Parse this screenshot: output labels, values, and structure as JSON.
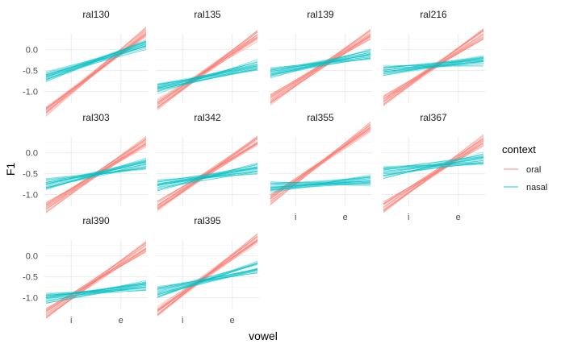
{
  "colors": {
    "oral": "#F8766D",
    "nasal": "#00BFC4"
  },
  "chart_data": {
    "type": "line",
    "title": "",
    "xlabel": "vowel",
    "ylabel": "F1",
    "x_categories": [
      "i",
      "e"
    ],
    "y_ticks": [
      0.0,
      -0.5,
      -1.0
    ],
    "y_tick_labels": [
      "0.0",
      "-0.5",
      "-1.0"
    ],
    "ylim": [
      -1.28,
      0.38
    ],
    "grid": true,
    "legend": {
      "title": "context",
      "position": "right",
      "entries": [
        {
          "key": "oral",
          "label": "oral"
        },
        {
          "key": "nasal",
          "label": "nasal"
        }
      ]
    },
    "samples_per_series": 40,
    "facets": [
      {
        "label": "ral130",
        "series": [
          {
            "name": "oral",
            "i": -1.0,
            "e": -0.05,
            "spread": 0.08
          },
          {
            "name": "nasal",
            "i": -0.45,
            "e": -0.08,
            "spread": 0.08
          }
        ]
      },
      {
        "label": "ral135",
        "series": [
          {
            "name": "oral",
            "i": -0.9,
            "e": -0.08,
            "spread": 0.08
          },
          {
            "name": "nasal",
            "i": -0.78,
            "e": -0.52,
            "spread": 0.08
          }
        ]
      },
      {
        "label": "ral139",
        "series": [
          {
            "name": "oral",
            "i": -0.8,
            "e": -0.02,
            "spread": 0.08
          },
          {
            "name": "nasal",
            "i": -0.45,
            "e": -0.22,
            "spread": 0.08
          }
        ]
      },
      {
        "label": "ral216",
        "series": [
          {
            "name": "oral",
            "i": -0.82,
            "e": -0.02,
            "spread": 0.08
          },
          {
            "name": "nasal",
            "i": -0.45,
            "e": -0.32,
            "spread": 0.08
          }
        ]
      },
      {
        "label": "ral303",
        "series": [
          {
            "name": "oral",
            "i": -0.92,
            "e": -0.12,
            "spread": 0.08
          },
          {
            "name": "nasal",
            "i": -0.62,
            "e": -0.38,
            "spread": 0.08
          }
        ]
      },
      {
        "label": "ral342",
        "series": [
          {
            "name": "oral",
            "i": -0.88,
            "e": -0.1,
            "spread": 0.08
          },
          {
            "name": "nasal",
            "i": -0.68,
            "e": -0.48,
            "spread": 0.08
          }
        ]
      },
      {
        "label": "ral355",
        "series": [
          {
            "name": "oral",
            "i": -0.68,
            "e": 0.18,
            "spread": 0.08
          },
          {
            "name": "nasal",
            "i": -0.78,
            "e": -0.7,
            "spread": 0.08
          }
        ]
      },
      {
        "label": "ral367",
        "series": [
          {
            "name": "oral",
            "i": -0.9,
            "e": -0.1,
            "spread": 0.08
          },
          {
            "name": "nasal",
            "i": -0.38,
            "e": -0.22,
            "spread": 0.09
          }
        ]
      },
      {
        "label": "ral390",
        "series": [
          {
            "name": "oral",
            "i": -0.98,
            "e": -0.18,
            "spread": 0.08
          },
          {
            "name": "nasal",
            "i": -0.95,
            "e": -0.78,
            "spread": 0.08
          }
        ]
      },
      {
        "label": "ral395",
        "series": [
          {
            "name": "oral",
            "i": -0.9,
            "e": -0.02,
            "spread": 0.08
          },
          {
            "name": "nasal",
            "i": -0.72,
            "e": -0.42,
            "spread": 0.08
          }
        ]
      }
    ]
  }
}
